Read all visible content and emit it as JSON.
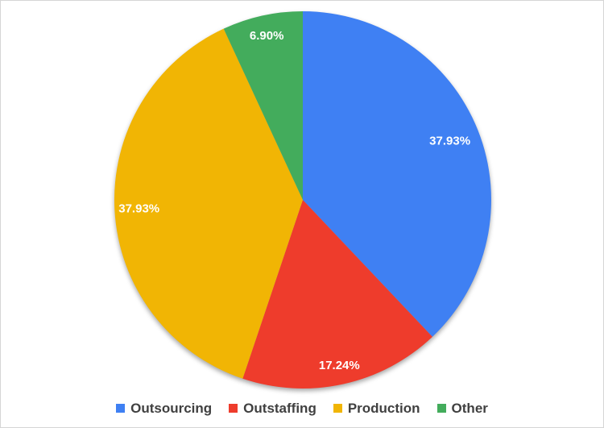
{
  "page": {
    "background": "#FFFFFF",
    "border_color": "#D6D6D6"
  },
  "chart_data": {
    "type": "pie",
    "title": "",
    "direction": "clockwise",
    "start_angle_deg": 0,
    "legend_position": "bottom",
    "grid": false,
    "slice_label_color": "#FFFFFF",
    "legend_text_color": "#404040",
    "categories": [
      "Outsourcing",
      "Outstaffing",
      "Production",
      "Other"
    ],
    "values": [
      37.93,
      17.24,
      37.93,
      6.9
    ],
    "slices": [
      {
        "label": "Outsourcing",
        "value": 37.93,
        "display_value": "37.93%",
        "color": "#3F80F3",
        "label_radius_frac": 0.84
      },
      {
        "label": "Outstaffing",
        "value": 17.24,
        "display_value": "17.24%",
        "color": "#EE3C2C",
        "label_radius_frac": 0.9
      },
      {
        "label": "Production",
        "value": 37.93,
        "display_value": "37.93%",
        "color": "#F1B504",
        "label_radius_frac": 0.87
      },
      {
        "label": "Other",
        "value": 6.9,
        "display_value": "6.90%",
        "color": "#43AC5C",
        "label_radius_frac": 0.89
      }
    ]
  }
}
